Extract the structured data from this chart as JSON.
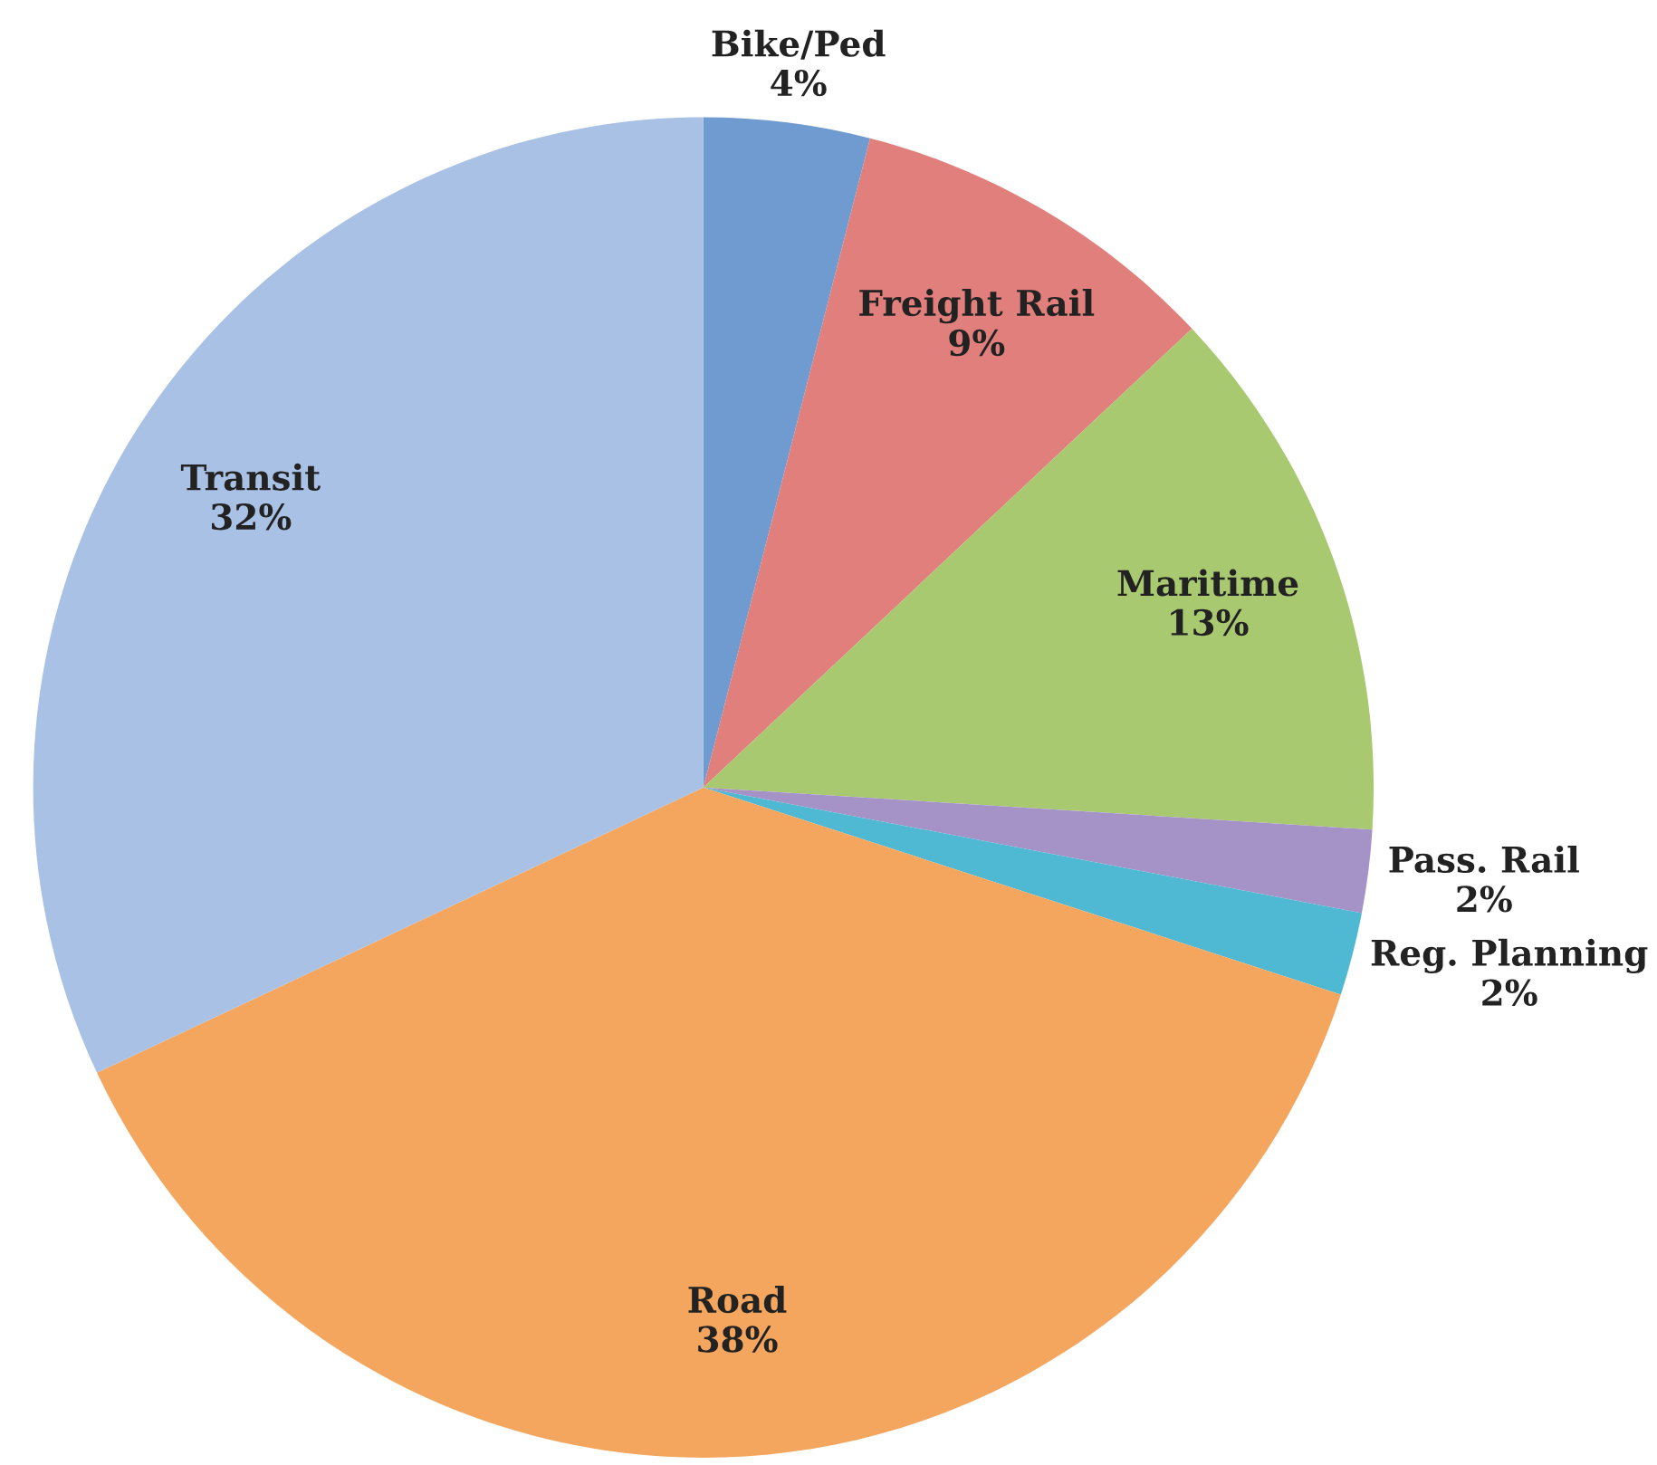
{
  "chart_data": {
    "type": "pie",
    "categories": [
      "Bike/Ped",
      "Freight Rail",
      "Maritime",
      "Pass. Rail",
      "Reg. Planning",
      "Road",
      "Transit"
    ],
    "values": [
      4,
      9,
      13,
      2,
      2,
      38,
      32
    ],
    "value_labels": [
      "4%",
      "9%",
      "13%",
      "2%",
      "2%",
      "38%",
      "32%"
    ],
    "colors": [
      "#6f9bd1",
      "#e07f7c",
      "#a8c970",
      "#a593c8",
      "#4fb8d2",
      "#f4a65e",
      "#a9c1e4"
    ],
    "legend": false
  }
}
